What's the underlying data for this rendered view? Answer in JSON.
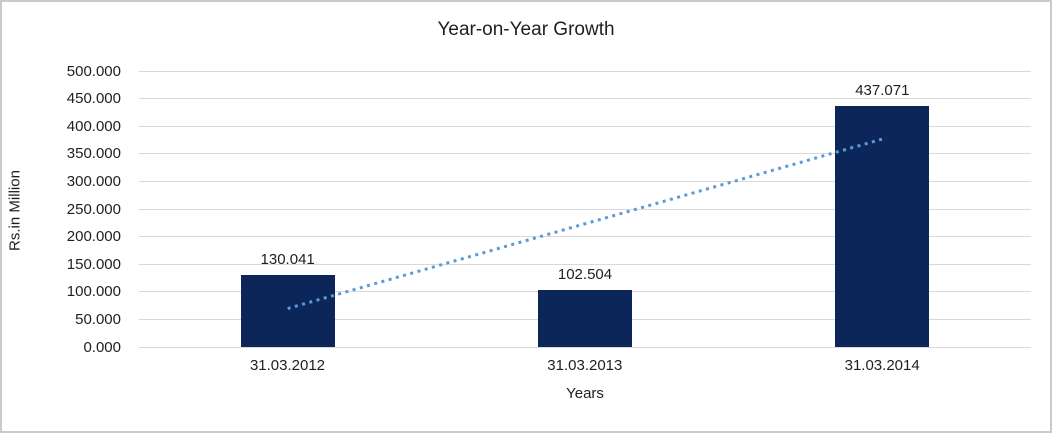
{
  "chart_data": {
    "type": "bar",
    "title": "Year-on-Year Growth",
    "xlabel": "Years",
    "ylabel": "Rs.in Million",
    "categories": [
      "31.03.2012",
      "31.03.2013",
      "31.03.2014"
    ],
    "values": [
      130.041,
      102.504,
      437.071
    ],
    "data_labels": [
      "130.041",
      "102.504",
      "437.071"
    ],
    "ylim": [
      0,
      500
    ],
    "ytick_step": 50,
    "ytick_decimals": 3,
    "grid": true,
    "legend_position": "none",
    "bar_color": "#0d2659",
    "gridline_color": "#d9d9d9",
    "text_color": "#1f1f1f",
    "trendline": {
      "type": "linear",
      "style": "dotted",
      "color": "#5b9bd5"
    }
  }
}
